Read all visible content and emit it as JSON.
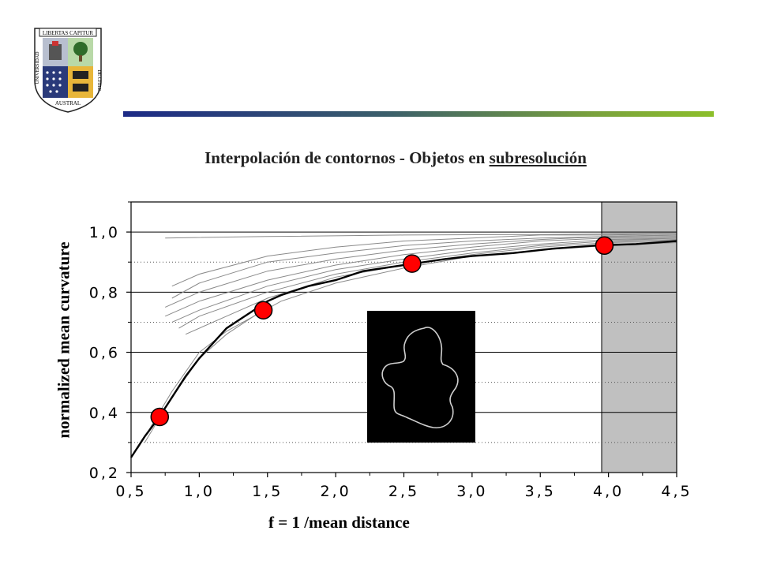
{
  "logo": {
    "top_text": "LIBERTAS CAPITUR",
    "left_text": "UNIVERSIDAD",
    "bottom_text": "AUSTRAL",
    "right_text": "DE CHILE"
  },
  "header": {
    "title_prefix": "Interpolación de contornos  - Objetos en ",
    "title_underlined": "subresolución"
  },
  "chart_data": {
    "type": "line",
    "xlabel": "f  = 1 /mean distance",
    "ylabel": "normalized mean curvature",
    "xlim": [
      0.5,
      4.5
    ],
    "ylim": [
      0.2,
      1.1
    ],
    "x_ticks": [
      0.5,
      1.0,
      1.5,
      2.0,
      2.5,
      3.0,
      3.5,
      4.0,
      4.5
    ],
    "y_ticks": [
      0.2,
      0.4,
      0.6,
      0.8,
      1.0
    ],
    "x_tick_labels": [
      "0,5",
      "1,0",
      "1,5",
      "2,0",
      "2,5",
      "3,0",
      "3,5",
      "4,0",
      "4,5"
    ],
    "y_tick_labels": [
      "0,2",
      "0,4",
      "0,6",
      "0,8",
      "1,0"
    ],
    "grid": "horizontal",
    "shaded_region": {
      "x": [
        3.95,
        4.5
      ],
      "color": "#c0c0c0"
    },
    "series": [
      {
        "role": "main",
        "color": "#000000",
        "x": [
          0.5,
          0.6,
          0.7,
          0.8,
          0.9,
          1.0,
          1.1,
          1.2,
          1.3,
          1.4,
          1.5,
          1.6,
          1.8,
          2.0,
          2.2,
          2.5,
          2.8,
          3.0,
          3.3,
          3.6,
          3.9,
          4.2,
          4.5
        ],
        "y": [
          0.25,
          0.32,
          0.38,
          0.45,
          0.52,
          0.58,
          0.63,
          0.68,
          0.71,
          0.74,
          0.77,
          0.79,
          0.82,
          0.84,
          0.87,
          0.89,
          0.91,
          0.92,
          0.93,
          0.945,
          0.955,
          0.96,
          0.97
        ]
      }
    ],
    "gray_series": [
      [
        [
          0.75,
          0.75
        ],
        [
          1.0,
          0.8
        ],
        [
          1.5,
          0.87
        ],
        [
          2.0,
          0.91
        ],
        [
          2.5,
          0.94
        ],
        [
          3.0,
          0.96
        ],
        [
          3.5,
          0.975
        ],
        [
          4.0,
          0.985
        ],
        [
          4.5,
          0.99
        ]
      ],
      [
        [
          0.75,
          0.72
        ],
        [
          1.0,
          0.77
        ],
        [
          1.5,
          0.84
        ],
        [
          2.0,
          0.89
        ],
        [
          2.5,
          0.925
        ],
        [
          3.0,
          0.95
        ],
        [
          3.5,
          0.97
        ],
        [
          4.0,
          0.98
        ],
        [
          4.5,
          0.985
        ]
      ],
      [
        [
          0.8,
          0.7
        ],
        [
          1.0,
          0.74
        ],
        [
          1.5,
          0.82
        ],
        [
          2.0,
          0.875
        ],
        [
          2.5,
          0.91
        ],
        [
          3.0,
          0.94
        ],
        [
          3.5,
          0.96
        ],
        [
          4.0,
          0.975
        ],
        [
          4.5,
          0.98
        ]
      ],
      [
        [
          0.85,
          0.68
        ],
        [
          1.0,
          0.72
        ],
        [
          1.5,
          0.8
        ],
        [
          2.0,
          0.86
        ],
        [
          2.5,
          0.9
        ],
        [
          3.0,
          0.93
        ],
        [
          3.5,
          0.955
        ],
        [
          4.0,
          0.97
        ],
        [
          4.5,
          0.98
        ]
      ],
      [
        [
          0.9,
          0.66
        ],
        [
          1.2,
          0.72
        ],
        [
          1.5,
          0.78
        ],
        [
          2.0,
          0.85
        ],
        [
          2.5,
          0.89
        ],
        [
          3.0,
          0.925
        ],
        [
          3.5,
          0.95
        ],
        [
          4.0,
          0.965
        ],
        [
          4.5,
          0.975
        ]
      ],
      [
        [
          0.8,
          0.82
        ],
        [
          1.0,
          0.86
        ],
        [
          1.5,
          0.92
        ],
        [
          2.0,
          0.95
        ],
        [
          2.5,
          0.97
        ],
        [
          3.0,
          0.98
        ],
        [
          3.5,
          0.99
        ],
        [
          4.0,
          0.99
        ],
        [
          4.5,
          0.995
        ]
      ],
      [
        [
          0.8,
          0.78
        ],
        [
          1.0,
          0.83
        ],
        [
          1.5,
          0.9
        ],
        [
          2.0,
          0.93
        ],
        [
          2.5,
          0.955
        ],
        [
          3.0,
          0.97
        ],
        [
          3.5,
          0.98
        ],
        [
          4.0,
          0.985
        ],
        [
          4.5,
          0.99
        ]
      ],
      [
        [
          0.75,
          0.98
        ],
        [
          1.5,
          0.985
        ],
        [
          2.5,
          0.99
        ],
        [
          3.5,
          0.992
        ],
        [
          4.5,
          0.995
        ]
      ],
      [
        [
          0.6,
          0.3
        ],
        [
          0.8,
          0.45
        ],
        [
          1.0,
          0.58
        ],
        [
          1.2,
          0.66
        ],
        [
          1.4,
          0.72
        ],
        [
          1.6,
          0.77
        ],
        [
          2.0,
          0.83
        ],
        [
          2.5,
          0.88
        ],
        [
          3.0,
          0.92
        ],
        [
          3.5,
          0.94
        ],
        [
          4.0,
          0.955
        ],
        [
          4.5,
          0.965
        ]
      ],
      [
        [
          0.55,
          0.28
        ],
        [
          0.8,
          0.47
        ],
        [
          1.0,
          0.6
        ],
        [
          1.2,
          0.67
        ],
        [
          1.4,
          0.72
        ],
        [
          1.5,
          0.75
        ]
      ]
    ],
    "highlight_points": {
      "color": "#ff0000",
      "x": [
        0.71,
        1.47,
        2.56,
        3.97
      ],
      "y": [
        0.385,
        0.74,
        0.895,
        0.955
      ]
    }
  },
  "inset": {
    "label": "contour-image"
  }
}
